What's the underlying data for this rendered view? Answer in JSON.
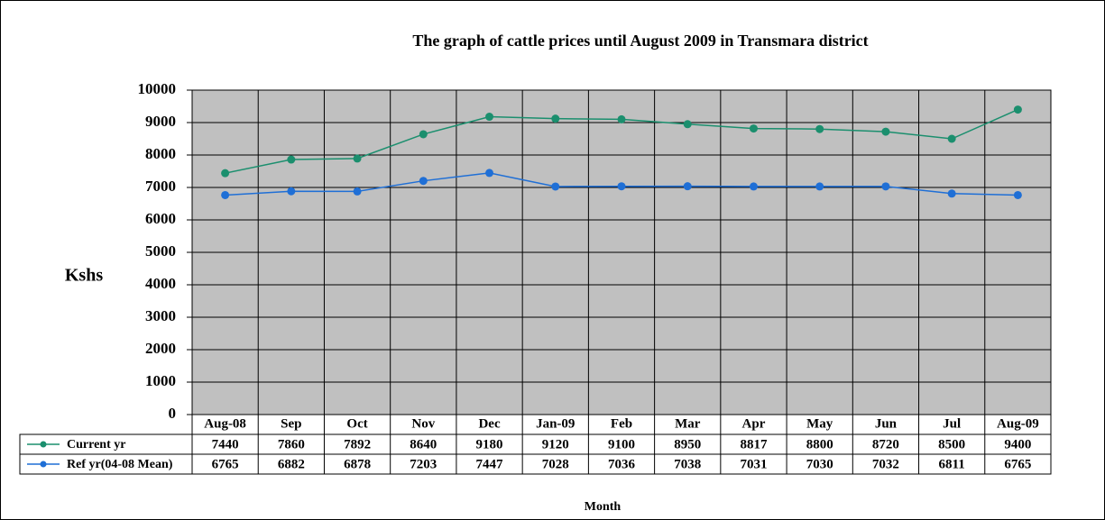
{
  "chart_data": {
    "type": "line",
    "title": "The graph of  cattle prices  until August 2009 in Transmara district",
    "y_label": "Kshs",
    "x_label": "Month",
    "categories": [
      "Aug-08",
      "Sep",
      "Oct",
      "Nov",
      "Dec",
      "Jan-09",
      "Feb",
      "Mar",
      "Apr",
      "May",
      "Jun",
      "Jul",
      "Aug-09"
    ],
    "series": [
      {
        "name": "Current yr",
        "color": "#1b8f6e",
        "values": [
          7440,
          7860,
          7892,
          8640,
          9180,
          9120,
          9100,
          8950,
          8817,
          8800,
          8720,
          8500,
          9400
        ]
      },
      {
        "name": "Ref yr(04-08 Mean)",
        "color": "#1f6fd6",
        "values": [
          6765,
          6882,
          6878,
          7203,
          7447,
          7028,
          7036,
          7038,
          7031,
          7030,
          7032,
          6811,
          6765
        ]
      }
    ],
    "ylim": [
      0,
      10000
    ],
    "yticks": [
      0,
      1000,
      2000,
      3000,
      4000,
      5000,
      6000,
      7000,
      8000,
      9000,
      10000
    ],
    "grid": true,
    "plot_background": "#c0c0c0"
  }
}
